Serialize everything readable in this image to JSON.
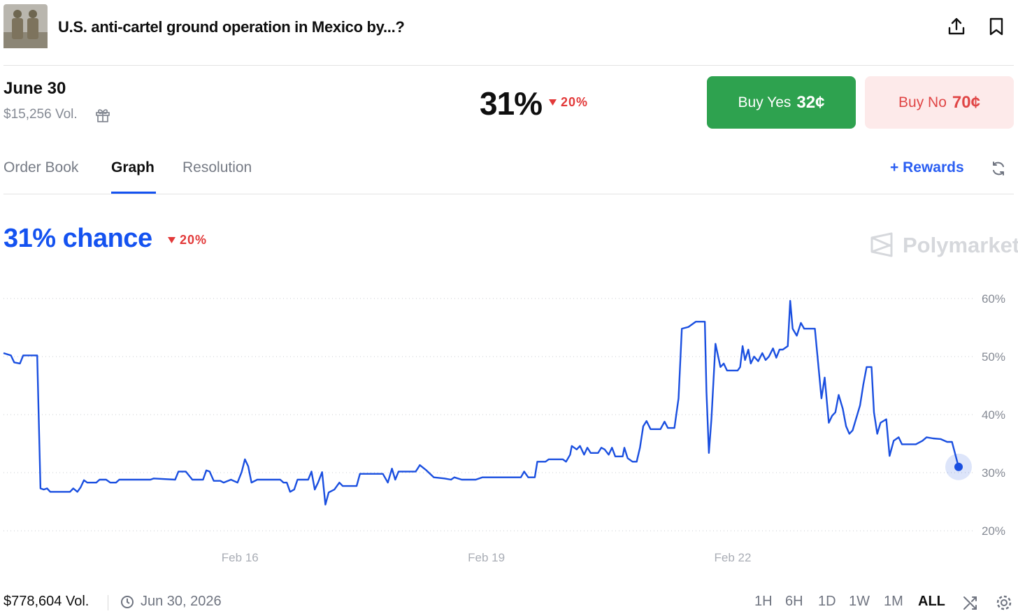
{
  "header": {
    "title": "U.S. anti-cartel ground operation in Mexico by...?"
  },
  "market": {
    "name": "June 30",
    "volume": "$15,256 Vol.",
    "price": "31%",
    "change": "20%"
  },
  "buttons": {
    "yes": {
      "label": "Buy Yes",
      "price": "32¢"
    },
    "no": {
      "label": "Buy No",
      "price": "70¢"
    }
  },
  "tabs": [
    "Order Book",
    "Graph",
    "Resolution"
  ],
  "rewards": "Rewards",
  "chart_data": {
    "type": "line",
    "title": "31% chance",
    "change": "20%",
    "watermark": "Polymarket",
    "color": "#1a4fe0",
    "x": [
      13.12,
      13.21,
      13.25,
      13.32,
      13.36,
      13.53,
      13.57,
      13.61,
      13.65,
      13.69,
      13.93,
      13.97,
      14.02,
      14.06,
      14.1,
      14.14,
      14.25,
      14.29,
      14.37,
      14.42,
      14.49,
      14.53,
      14.91,
      14.95,
      15.21,
      15.25,
      15.34,
      15.42,
      15.55,
      15.59,
      15.63,
      15.68,
      15.76,
      15.8,
      15.89,
      15.97,
      16.02,
      16.06,
      16.1,
      16.14,
      16.21,
      16.49,
      16.53,
      16.57,
      16.61,
      16.66,
      16.7,
      16.83,
      16.87,
      16.91,
      16.95,
      17.0,
      17.04,
      17.08,
      17.15,
      17.21,
      17.25,
      17.42,
      17.46,
      17.74,
      17.8,
      17.85,
      17.89,
      17.93,
      18.14,
      18.19,
      18.27,
      18.36,
      18.49,
      18.57,
      18.61,
      18.7,
      18.87,
      18.95,
      19.42,
      19.46,
      19.51,
      19.59,
      19.62,
      19.72,
      19.76,
      19.93,
      19.97,
      20.02,
      20.04,
      20.1,
      20.14,
      20.19,
      20.23,
      20.27,
      20.36,
      20.4,
      20.44,
      20.49,
      20.53,
      20.57,
      20.66,
      20.68,
      20.72,
      20.78,
      20.83,
      20.87,
      20.91,
      20.95,
      21.0,
      21.12,
      21.17,
      21.21,
      21.29,
      21.34,
      21.38,
      21.46,
      21.55,
      21.66,
      21.68,
      21.71,
      21.74,
      21.79,
      21.85,
      21.89,
      21.93,
      21.97,
      22.06,
      22.09,
      22.12,
      22.15,
      22.19,
      22.22,
      22.26,
      22.31,
      22.36,
      22.4,
      22.44,
      22.49,
      22.53,
      22.57,
      22.61,
      22.67,
      22.7,
      22.73,
      22.78,
      22.83,
      22.87,
      23.0,
      23.04,
      23.08,
      23.12,
      23.17,
      23.21,
      23.25,
      23.29,
      23.34,
      23.38,
      23.42,
      23.46,
      23.55,
      23.59,
      23.63,
      23.69,
      23.72,
      23.76,
      23.8,
      23.87,
      23.91,
      23.96,
      24.02,
      24.06,
      24.23,
      24.31,
      24.36,
      24.44,
      24.53,
      24.61,
      24.67,
      24.7,
      24.75
    ],
    "values": [
      50.6,
      50.2,
      49.0,
      48.8,
      50.2,
      50.2,
      27.3,
      27.1,
      27.3,
      26.7,
      26.7,
      27.3,
      26.7,
      27.5,
      28.7,
      28.3,
      28.3,
      28.8,
      28.8,
      28.3,
      28.3,
      28.8,
      28.8,
      29.0,
      28.8,
      30.2,
      30.2,
      28.8,
      28.8,
      30.4,
      30.2,
      28.6,
      28.6,
      28.3,
      28.8,
      28.3,
      30.1,
      32.3,
      31.1,
      28.3,
      28.8,
      28.8,
      28.3,
      28.3,
      26.7,
      27.1,
      28.8,
      28.8,
      30.2,
      27.1,
      28.3,
      30.1,
      24.5,
      26.6,
      27.1,
      28.3,
      27.7,
      27.7,
      29.8,
      29.8,
      28.3,
      30.7,
      28.8,
      30.2,
      30.2,
      31.3,
      30.4,
      29.2,
      29.0,
      28.8,
      29.2,
      28.8,
      28.8,
      29.2,
      29.2,
      30.2,
      29.2,
      29.2,
      31.9,
      31.9,
      32.3,
      32.3,
      31.9,
      33.1,
      34.6,
      34.0,
      34.6,
      33.1,
      34.3,
      33.4,
      33.4,
      34.3,
      34.0,
      33.1,
      34.3,
      32.8,
      32.8,
      34.3,
      32.5,
      31.9,
      31.9,
      34.3,
      38.0,
      38.9,
      37.5,
      37.5,
      38.8,
      37.7,
      37.7,
      42.8,
      54.8,
      55.1,
      56.0,
      56.0,
      44.0,
      33.4,
      39.2,
      52.2,
      48.2,
      48.8,
      47.6,
      47.6,
      47.6,
      48.2,
      51.8,
      49.4,
      51.2,
      48.8,
      50.0,
      49.2,
      50.6,
      49.4,
      50.0,
      51.4,
      49.8,
      51.2,
      51.2,
      51.8,
      59.6,
      54.8,
      53.6,
      55.8,
      54.8,
      54.8,
      48.8,
      42.8,
      46.4,
      38.6,
      39.8,
      40.4,
      43.4,
      41.0,
      38.0,
      36.7,
      37.3,
      41.6,
      45.2,
      48.2,
      48.2,
      40.4,
      36.7,
      38.6,
      39.2,
      32.9,
      35.5,
      36.1,
      34.9,
      34.9,
      35.5,
      36.1,
      35.9,
      35.8,
      35.3,
      35.3,
      33.7,
      31.0
    ],
    "xlim": [
      13.12,
      24.75
    ],
    "xticks": [
      {
        "value": 16,
        "label": "Feb 16"
      },
      {
        "value": 19,
        "label": "Feb 19"
      },
      {
        "value": 22,
        "label": "Feb 22"
      }
    ],
    "ylim": [
      17,
      63
    ],
    "yticks": [
      {
        "value": 20,
        "label": "20%"
      },
      {
        "value": 30,
        "label": "30%"
      },
      {
        "value": 40,
        "label": "40%"
      },
      {
        "value": 50,
        "label": "50%"
      },
      {
        "value": 60,
        "label": "60%"
      }
    ],
    "grid": true
  },
  "footer": {
    "volume": "$778,604 Vol.",
    "end_date": "Jun 30, 2026",
    "ranges": [
      "1H",
      "6H",
      "1D",
      "1W",
      "1M",
      "ALL"
    ]
  }
}
